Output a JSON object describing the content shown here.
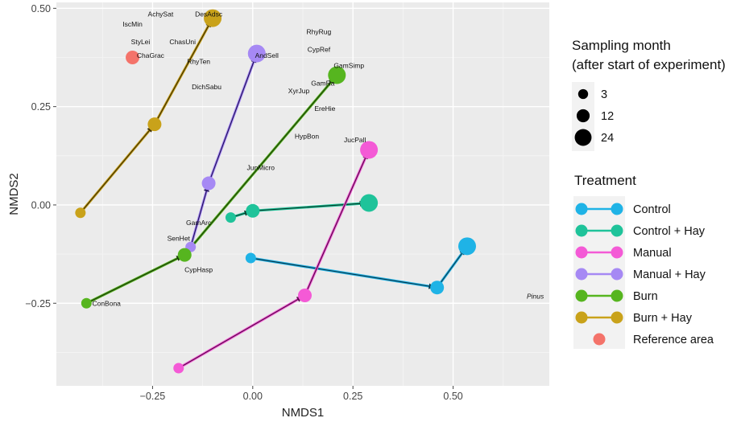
{
  "chart_data": {
    "type": "scatter",
    "xlabel": "NMDS1",
    "ylabel": "NMDS2",
    "xlim": [
      -0.49,
      0.74
    ],
    "ylim": [
      -0.46,
      0.515
    ],
    "x_ticks": [
      -0.25,
      0.0,
      0.25,
      0.5
    ],
    "x_tick_labels": [
      "−0.25",
      "0.00",
      "0.25",
      "0.50"
    ],
    "y_ticks": [
      -0.25,
      0.0,
      0.25,
      0.5
    ],
    "y_tick_labels": [
      "−0.25",
      "0.00",
      "0.25",
      "0.50"
    ],
    "grid": true,
    "background": "#ebebeb",
    "legend_placement": "right",
    "size_legend": {
      "title_lines": [
        "Sampling month",
        "(after start of experiment)"
      ],
      "items": [
        {
          "label": "3",
          "month": 3
        },
        {
          "label": "12",
          "month": 12
        },
        {
          "label": "24",
          "month": 24
        }
      ]
    },
    "color_legend": {
      "title": "Treatment",
      "items": [
        {
          "label": "Control",
          "color": "#1fb3e6"
        },
        {
          "label": "Control + Hay",
          "color": "#1fc39a"
        },
        {
          "label": "Manual",
          "color": "#f45ad6"
        },
        {
          "label": "Manual + Hay",
          "color": "#a689f4"
        },
        {
          "label": "Burn",
          "color": "#56b51f"
        },
        {
          "label": "Burn + Hay",
          "color": "#c9a21a"
        },
        {
          "label": "Reference area",
          "color": "#f4736a"
        }
      ]
    },
    "series": [
      {
        "name": "Control",
        "color": "#1fb3e6",
        "arrow_color": "#0d3a4e",
        "points": [
          {
            "x": -0.005,
            "y": -0.135,
            "month": 3
          },
          {
            "x": 0.46,
            "y": -0.21,
            "month": 12
          },
          {
            "x": 0.535,
            "y": -0.105,
            "month": 24
          }
        ]
      },
      {
        "name": "Control + Hay",
        "color": "#1fc39a",
        "arrow_color": "#0b3d2d",
        "points": [
          {
            "x": -0.055,
            "y": -0.032,
            "month": 3
          },
          {
            "x": 0.0,
            "y": -0.015,
            "month": 12
          },
          {
            "x": 0.29,
            "y": 0.005,
            "month": 24
          }
        ]
      },
      {
        "name": "Manual",
        "color": "#f45ad6",
        "arrow_color": "#5a0e4c",
        "points": [
          {
            "x": -0.185,
            "y": -0.415,
            "month": 3
          },
          {
            "x": 0.13,
            "y": -0.23,
            "month": 12
          },
          {
            "x": 0.29,
            "y": 0.14,
            "month": 24
          }
        ]
      },
      {
        "name": "Manual + Hay",
        "color": "#a689f4",
        "arrow_color": "#24135e",
        "points": [
          {
            "x": -0.155,
            "y": -0.107,
            "month": 3
          },
          {
            "x": -0.11,
            "y": 0.055,
            "month": 12
          },
          {
            "x": 0.01,
            "y": 0.385,
            "month": 24
          }
        ]
      },
      {
        "name": "Burn",
        "color": "#56b51f",
        "arrow_color": "#1c3a0a",
        "points": [
          {
            "x": -0.415,
            "y": -0.25,
            "month": 3
          },
          {
            "x": -0.17,
            "y": -0.127,
            "month": 12
          },
          {
            "x": 0.21,
            "y": 0.33,
            "month": 24
          }
        ]
      },
      {
        "name": "Burn + Hay",
        "color": "#c9a21a",
        "arrow_color": "#3d2f05",
        "points": [
          {
            "x": -0.43,
            "y": -0.02,
            "month": 3
          },
          {
            "x": -0.245,
            "y": 0.205,
            "month": 12
          },
          {
            "x": -0.1,
            "y": 0.475,
            "month": 24
          }
        ]
      },
      {
        "name": "Reference area",
        "color": "#f4736a",
        "points": [
          {
            "x": -0.3,
            "y": 0.375,
            "month": 12
          }
        ]
      }
    ],
    "species_labels": [
      {
        "text": "AchySat",
        "x": -0.23,
        "y": 0.485
      },
      {
        "text": "DesAdsc",
        "x": -0.11,
        "y": 0.485
      },
      {
        "text": "IscMin",
        "x": -0.3,
        "y": 0.46
      },
      {
        "text": "StyLei",
        "x": -0.28,
        "y": 0.415
      },
      {
        "text": "ChasUni",
        "x": -0.175,
        "y": 0.415
      },
      {
        "text": "ChaGrac",
        "x": -0.255,
        "y": 0.38
      },
      {
        "text": "RhyTen",
        "x": -0.135,
        "y": 0.365
      },
      {
        "text": "AndSell",
        "x": 0.035,
        "y": 0.38
      },
      {
        "text": "DichSabu",
        "x": -0.115,
        "y": 0.3
      },
      {
        "text": "RhyRug",
        "x": 0.165,
        "y": 0.44
      },
      {
        "text": "CypRef",
        "x": 0.165,
        "y": 0.395
      },
      {
        "text": "GamSimp",
        "x": 0.24,
        "y": 0.355
      },
      {
        "text": "GamRa",
        "x": 0.175,
        "y": 0.31
      },
      {
        "text": "XyrJup",
        "x": 0.115,
        "y": 0.29
      },
      {
        "text": "EreHie",
        "x": 0.18,
        "y": 0.245
      },
      {
        "text": "HypBon",
        "x": 0.135,
        "y": 0.175
      },
      {
        "text": "JucPall",
        "x": 0.255,
        "y": 0.165
      },
      {
        "text": "JunMicro",
        "x": 0.02,
        "y": 0.095
      },
      {
        "text": "GamArc",
        "x": -0.135,
        "y": -0.045
      },
      {
        "text": "SenHet",
        "x": -0.185,
        "y": -0.085
      },
      {
        "text": "CypHasp",
        "x": -0.135,
        "y": -0.165
      },
      {
        "text": "ConBona",
        "x": -0.365,
        "y": -0.25
      },
      {
        "text": "Pinus",
        "x": 0.705,
        "y": -0.232,
        "italic": true
      }
    ]
  }
}
